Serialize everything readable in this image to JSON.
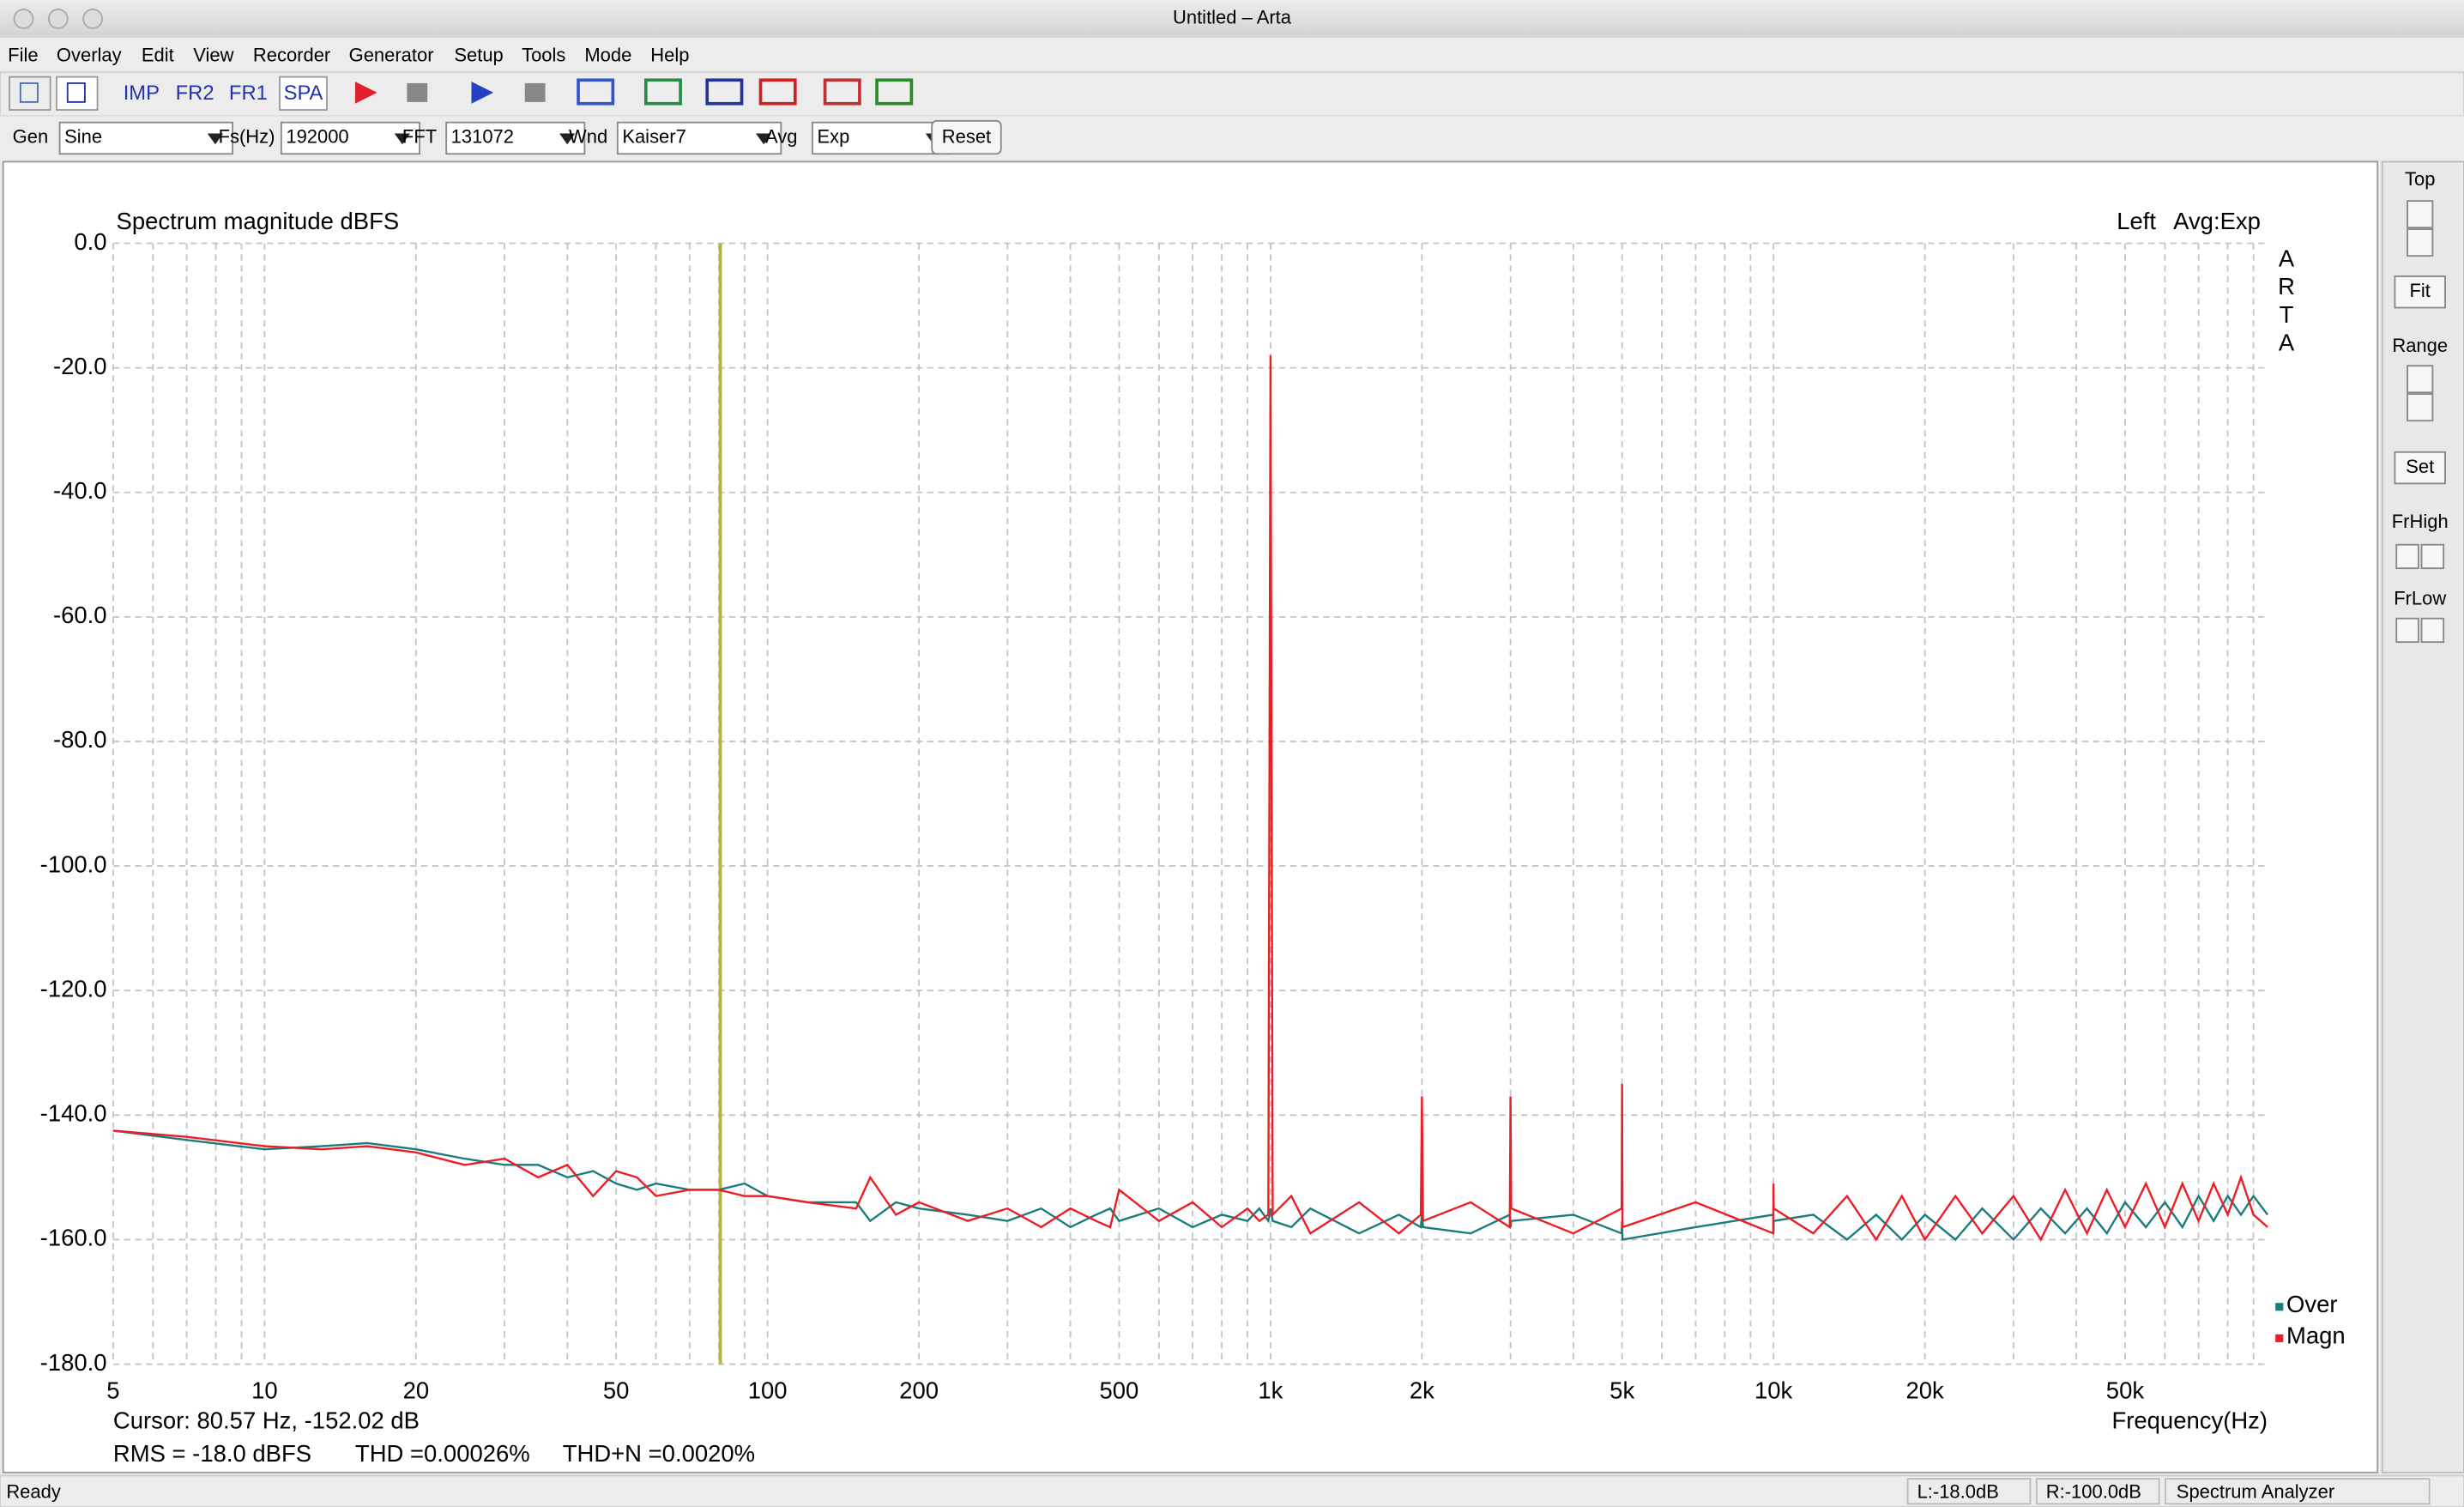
{
  "window": {
    "title": "Untitled – Arta"
  },
  "menu": [
    "File",
    "Overlay",
    "Edit",
    "View",
    "Recorder",
    "Generator",
    "Setup",
    "Tools",
    "Mode",
    "Help"
  ],
  "toolbar": [
    "IMP",
    "FR2",
    "FR1",
    "SPA"
  ],
  "controls": [
    {
      "label": "Gen",
      "value": "Sine"
    },
    {
      "label": "Fs(Hz)",
      "value": "192000"
    },
    {
      "label": "FFT",
      "value": "131072"
    },
    {
      "label": "Wnd",
      "value": "Kaiser7"
    },
    {
      "label": "Avg",
      "value": "Exp"
    }
  ],
  "reset_button": "Reset",
  "side_panel": [
    "Top",
    "Fit",
    "Range",
    "Set",
    "FrHigh",
    "FrLow"
  ],
  "chart_data": {
    "type": "line",
    "title": "Spectrum magnitude dBFS",
    "channel": "Left",
    "averaging": "Avg:Exp",
    "watermark": "ARTA",
    "xlabel": "Frequency(Hz)",
    "xscale": "log",
    "xlim": [
      5,
      96000
    ],
    "ylim": [
      -180,
      0
    ],
    "grid": true,
    "legend": "lower right",
    "xticks": [
      5,
      10,
      20,
      50,
      100,
      200,
      500,
      {
        "value": 1000,
        "label": "1k"
      },
      {
        "value": 2000,
        "label": "2k"
      },
      {
        "value": 5000,
        "label": "5k"
      },
      {
        "value": 10000,
        "label": "10k"
      },
      {
        "value": 20000,
        "label": "20k"
      },
      {
        "value": 50000,
        "label": "50k"
      }
    ],
    "xminorticks": [
      6,
      7,
      8,
      9,
      30,
      40,
      60,
      70,
      80,
      90,
      300,
      400,
      600,
      700,
      800,
      900,
      3000,
      4000,
      6000,
      7000,
      8000,
      9000,
      30000,
      40000,
      60000,
      70000,
      80000,
      90000
    ],
    "yticks": [
      {
        "value": 0,
        "label": "0.0"
      },
      {
        "value": -20,
        "label": "-20.0"
      },
      {
        "value": -40,
        "label": "-40.0"
      },
      {
        "value": -60,
        "label": "-60.0"
      },
      {
        "value": -80,
        "label": "-80.0"
      },
      {
        "value": -100,
        "label": "-100.0"
      },
      {
        "value": -120,
        "label": "-120.0"
      },
      {
        "value": -140,
        "label": "-140.0"
      },
      {
        "value": -160,
        "label": "-160.0"
      },
      {
        "value": -180,
        "label": "-180.0"
      }
    ],
    "x": [
      5,
      7,
      10,
      13,
      16,
      20,
      25,
      30,
      35,
      40,
      45,
      50,
      55,
      60,
      70,
      80,
      90,
      100,
      120,
      150,
      160,
      180,
      200,
      250,
      300,
      350,
      400,
      450,
      480,
      500,
      600,
      700,
      800,
      900,
      950,
      990,
      1000,
      1010,
      1100,
      1200,
      1500,
      1800,
      1990,
      2000,
      2010,
      2500,
      2990,
      3000,
      3010,
      4000,
      4990,
      5000,
      5010,
      7000,
      9990,
      10000,
      10010,
      12000,
      14000,
      16000,
      18000,
      20000,
      23000,
      26000,
      30000,
      34000,
      38000,
      42000,
      46000,
      50000,
      55000,
      60000,
      65000,
      70000,
      75000,
      80000,
      85000,
      90000,
      96000
    ],
    "series": [
      {
        "name": "Over",
        "color": "#1a7c7c",
        "values": [
          -142.5,
          -144,
          -145.5,
          -145,
          -144.5,
          -145.5,
          -147,
          -148,
          -148,
          -150,
          -149,
          -151,
          -152,
          -151,
          -152,
          -152,
          -151,
          -153,
          -154,
          -154,
          -157,
          -154,
          -155,
          -156,
          -157,
          -155,
          -158,
          -156,
          -155,
          -157,
          -155,
          -158,
          -156,
          -157,
          -155,
          -157,
          -155,
          -157,
          -158,
          -155,
          -159,
          -156,
          -158,
          -156,
          -158,
          -159,
          -156,
          -158,
          -157,
          -156,
          -159,
          -157,
          -160,
          -158,
          -156,
          -159,
          -157,
          -156,
          -160,
          -156,
          -160,
          -156,
          -160,
          -155,
          -160,
          -155,
          -159,
          -155,
          -159,
          -154,
          -158,
          -154,
          -158,
          -153,
          -157,
          -153,
          -156,
          -153,
          -156
        ]
      },
      {
        "name": "Magn",
        "color": "#ee1c24",
        "values": [
          -142.5,
          -143.5,
          -145,
          -145.5,
          -145,
          -146,
          -148,
          -147,
          -150,
          -148,
          -153,
          -149,
          -150,
          -153,
          -152,
          -152,
          -153,
          -153,
          -154,
          -155,
          -150,
          -156,
          -154,
          -157,
          -155,
          -158,
          -155,
          -157,
          -158,
          -152,
          -157,
          -154,
          -158,
          -155,
          -157,
          -156,
          -18,
          -156,
          -153,
          -159,
          -154,
          -159,
          -156,
          -137,
          -157,
          -154,
          -158,
          -137,
          -155,
          -159,
          -155,
          -135,
          -158,
          -154,
          -159,
          -151,
          -155,
          -159,
          -153,
          -160,
          -153,
          -160,
          -153,
          -159,
          -153,
          -160,
          -152,
          -159,
          -152,
          -158,
          -151,
          -158,
          -151,
          -157,
          -151,
          -156,
          -150,
          -156,
          -158
        ]
      }
    ],
    "cursor": {
      "x": 80.57,
      "color": "#b8b040",
      "label": "Cursor: 80.57 Hz, -152.02 dB"
    },
    "measurements": [
      "RMS =  -18.0 dBFS",
      "THD =0.00026%",
      "THD+N =0.0020%"
    ]
  },
  "status_bar": [
    "Ready",
    "L:-18.0dB",
    "R:-100.0dB",
    "Spectrum Analyzer"
  ]
}
